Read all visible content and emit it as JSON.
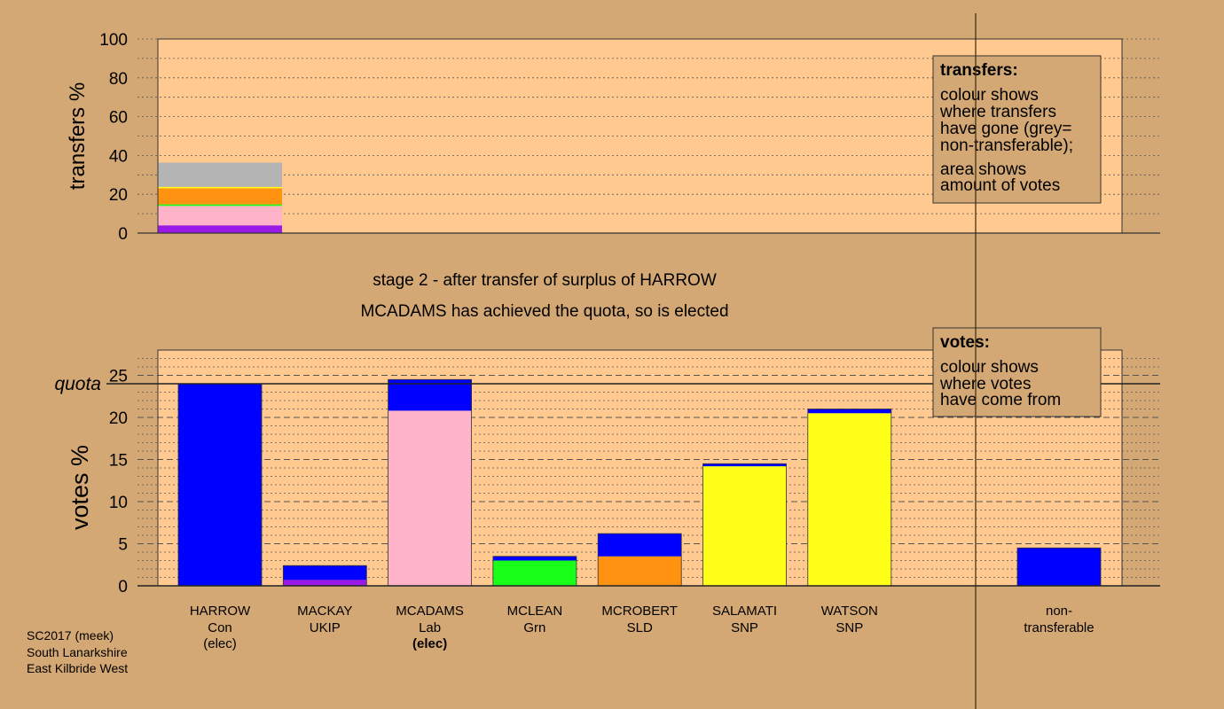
{
  "colors": {
    "background": "#d4a874",
    "plot_bg": "#ffc98f",
    "Con": "#0000ff",
    "UKIP": "#9b19e6",
    "Lab": "#ffb3c8",
    "Grn": "#1aff1a",
    "SLD": "#ff9210",
    "SNP": "#ffff1a",
    "nontransferable": "#b4b4b4"
  },
  "stage_text": {
    "line1": "stage 2 - after transfer of surplus of HARROW",
    "line2": "MCADAMS has achieved the quota, so is elected"
  },
  "legend_transfers": {
    "title": "transfers:",
    "lines": [
      "colour shows",
      "where transfers",
      "have gone (grey=",
      "non-transferable);"
    ],
    "lines2": [
      "area shows",
      "amount of votes"
    ]
  },
  "legend_votes": {
    "title": "votes:",
    "lines": [
      "colour shows",
      "where votes",
      "have come from"
    ]
  },
  "footer": {
    "lines": [
      "SC2017 (meek)",
      "South Lanarkshire",
      "East Kilbride West"
    ]
  },
  "chart_data": [
    {
      "type": "bar",
      "stacked": true,
      "ylabel": "transfers %",
      "ylim": [
        0,
        100
      ],
      "yticks": [
        0,
        20,
        40,
        60,
        80,
        100
      ],
      "bar_index": 0,
      "segments": [
        {
          "party": "UKIP",
          "value": 4.0
        },
        {
          "party": "Lab",
          "value": 10.0
        },
        {
          "party": "Grn",
          "value": 0.8
        },
        {
          "party": "SLD",
          "value": 8.3
        },
        {
          "party": "SNP",
          "value": 0.7
        },
        {
          "party": "nontransferable",
          "value": 12.5
        }
      ]
    },
    {
      "type": "bar",
      "stacked": true,
      "ylabel": "votes %",
      "ylim": [
        0,
        28
      ],
      "yticks": [
        0,
        5,
        10,
        15,
        20,
        25
      ],
      "quota": 24.0,
      "quota_label": "quota",
      "categories": [
        {
          "name": "HARROW",
          "party": "Con",
          "status": "(elec)",
          "status_bold": false,
          "segments": [
            {
              "party": "Con",
              "value": 24.0
            }
          ]
        },
        {
          "name": "MACKAY",
          "party": "UKIP",
          "status": "",
          "status_bold": false,
          "segments": [
            {
              "party": "UKIP",
              "value": 0.7
            },
            {
              "party": "Con",
              "value": 1.7
            }
          ]
        },
        {
          "name": "MCADAMS",
          "party": "Lab",
          "status": "(elec)",
          "status_bold": true,
          "segments": [
            {
              "party": "Lab",
              "value": 20.8
            },
            {
              "party": "Con",
              "value": 3.7
            }
          ]
        },
        {
          "name": "MCLEAN",
          "party": "Grn",
          "status": "",
          "status_bold": false,
          "segments": [
            {
              "party": "Grn",
              "value": 3.0
            },
            {
              "party": "Con",
              "value": 0.5
            }
          ]
        },
        {
          "name": "MCROBERT",
          "party": "SLD",
          "status": "",
          "status_bold": false,
          "segments": [
            {
              "party": "SLD",
              "value": 3.5
            },
            {
              "party": "Con",
              "value": 2.7
            }
          ]
        },
        {
          "name": "SALAMATI",
          "party": "SNP",
          "status": "",
          "status_bold": false,
          "segments": [
            {
              "party": "SNP",
              "value": 14.2
            },
            {
              "party": "Con",
              "value": 0.3
            }
          ]
        },
        {
          "name": "WATSON",
          "party": "SNP",
          "status": "",
          "status_bold": false,
          "segments": [
            {
              "party": "SNP",
              "value": 20.5
            },
            {
              "party": "Con",
              "value": 0.5
            }
          ]
        }
      ],
      "nontransferable": {
        "label_line1": "non-",
        "label_line2": "transferable",
        "segments": [
          {
            "party": "Con",
            "value": 4.5
          }
        ]
      }
    }
  ]
}
